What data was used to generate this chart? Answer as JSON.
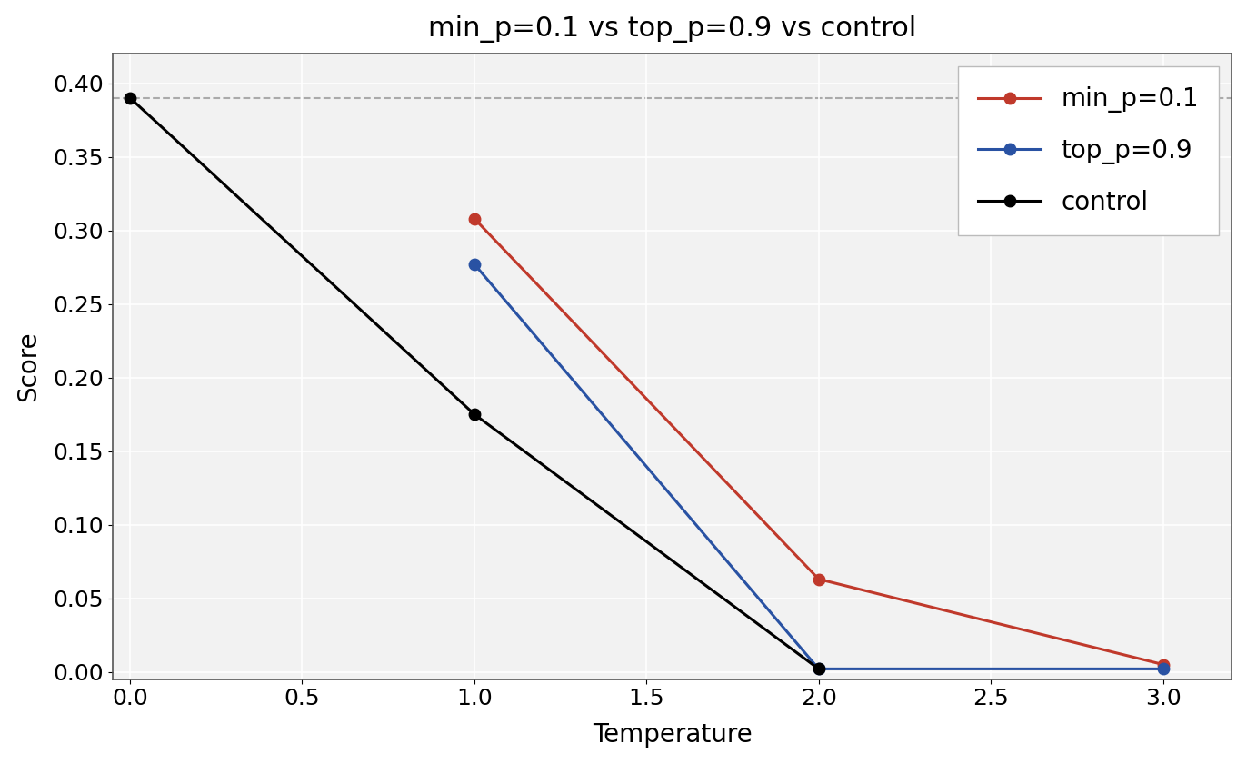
{
  "title": "min_p=0.1 vs top_p=0.9 vs control",
  "xlabel": "Temperature",
  "ylabel": "Score",
  "xlim": [
    -0.05,
    3.2
  ],
  "ylim": [
    -0.005,
    0.42
  ],
  "xticks": [
    0.0,
    0.5,
    1.0,
    1.5,
    2.0,
    2.5,
    3.0
  ],
  "yticks": [
    0.0,
    0.05,
    0.1,
    0.15,
    0.2,
    0.25,
    0.3,
    0.35,
    0.4
  ],
  "hline_y": 0.39,
  "series": [
    {
      "label": "min_p=0.1",
      "color": "#c0392b",
      "x": [
        1.0,
        2.0,
        3.0
      ],
      "y": [
        0.308,
        0.063,
        0.005
      ],
      "has_marker": true
    },
    {
      "label": "top_p=0.9",
      "color": "#2952a3",
      "x": [
        1.0,
        2.0,
        3.0
      ],
      "y": [
        0.277,
        0.002,
        0.002
      ],
      "has_marker": true
    },
    {
      "label": "control",
      "color": "#000000",
      "x": [
        0.0,
        1.0,
        2.0
      ],
      "y": [
        0.39,
        0.175,
        0.002
      ],
      "has_marker": true
    }
  ],
  "background_color": "#f2f2f2",
  "grid_color": "#ffffff",
  "title_fontsize": 22,
  "label_fontsize": 20,
  "tick_fontsize": 18,
  "legend_fontsize": 20,
  "marker": "o",
  "markersize": 9,
  "linewidth": 2.2,
  "hline_color": "#aaaaaa",
  "hline_style": "--",
  "hline_lw": 1.5
}
